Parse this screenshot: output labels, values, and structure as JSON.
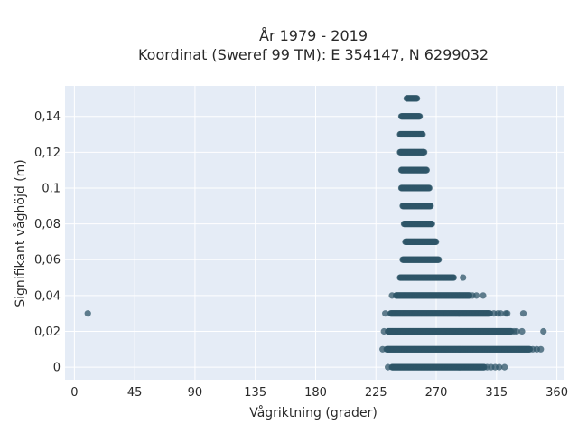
{
  "chart_data": {
    "type": "scatter",
    "title": "År 1979 - 2019",
    "subtitle": "Koordinat (Sweref 99 TM): E 354147, N 6299032",
    "xlabel": "Vågriktning (grader)",
    "ylabel": "Signifikant våghöjd (m)",
    "xlim": [
      -7,
      365
    ],
    "ylim": [
      -0.007,
      0.157
    ],
    "x_ticks": [
      0,
      45,
      90,
      135,
      180,
      225,
      270,
      315,
      360
    ],
    "x_tick_labels": [
      "0",
      "45",
      "90",
      "135",
      "180",
      "225",
      "270",
      "315",
      "360"
    ],
    "y_ticks": [
      0,
      0.02,
      0.04,
      0.06,
      0.08,
      0.1,
      0.12,
      0.14
    ],
    "y_tick_labels": [
      "0",
      "0,02",
      "0,04",
      "0,06",
      "0,08",
      "0,1",
      "0,12",
      "0,14"
    ],
    "grid": true,
    "marker_color": "#2f5568",
    "background_color": "#e5ecf6",
    "bands": [
      {
        "y": 0.15,
        "x_min": 248,
        "x_max": 256,
        "outliers": []
      },
      {
        "y": 0.14,
        "x_min": 244,
        "x_max": 258,
        "outliers": []
      },
      {
        "y": 0.13,
        "x_min": 243,
        "x_max": 260,
        "outliers": []
      },
      {
        "y": 0.12,
        "x_min": 243,
        "x_max": 261,
        "outliers": []
      },
      {
        "y": 0.11,
        "x_min": 244,
        "x_max": 263,
        "outliers": []
      },
      {
        "y": 0.1,
        "x_min": 244,
        "x_max": 265,
        "outliers": []
      },
      {
        "y": 0.09,
        "x_min": 245,
        "x_max": 266,
        "outliers": []
      },
      {
        "y": 0.08,
        "x_min": 246,
        "x_max": 267,
        "outliers": []
      },
      {
        "y": 0.07,
        "x_min": 247,
        "x_max": 270,
        "outliers": []
      },
      {
        "y": 0.06,
        "x_min": 245,
        "x_max": 272,
        "outliers": []
      },
      {
        "y": 0.05,
        "x_min": 243,
        "x_max": 283,
        "outliers": [
          290
        ]
      },
      {
        "y": 0.04,
        "x_min": 240,
        "x_max": 295,
        "outliers": [
          237,
          297,
          300,
          305
        ]
      },
      {
        "y": 0.03,
        "x_min": 236,
        "x_max": 310,
        "outliers": [
          10,
          232,
          313,
          316,
          318,
          322,
          323,
          335
        ]
      },
      {
        "y": 0.02,
        "x_min": 234,
        "x_max": 326,
        "outliers": [
          231,
          328,
          330,
          334,
          350
        ]
      },
      {
        "y": 0.01,
        "x_min": 233,
        "x_max": 340,
        "outliers": [
          230,
          342,
          345,
          348
        ]
      },
      {
        "y": 0.0,
        "x_min": 237,
        "x_max": 306,
        "outliers": [
          234,
          308,
          311,
          314,
          317,
          321
        ]
      }
    ]
  }
}
